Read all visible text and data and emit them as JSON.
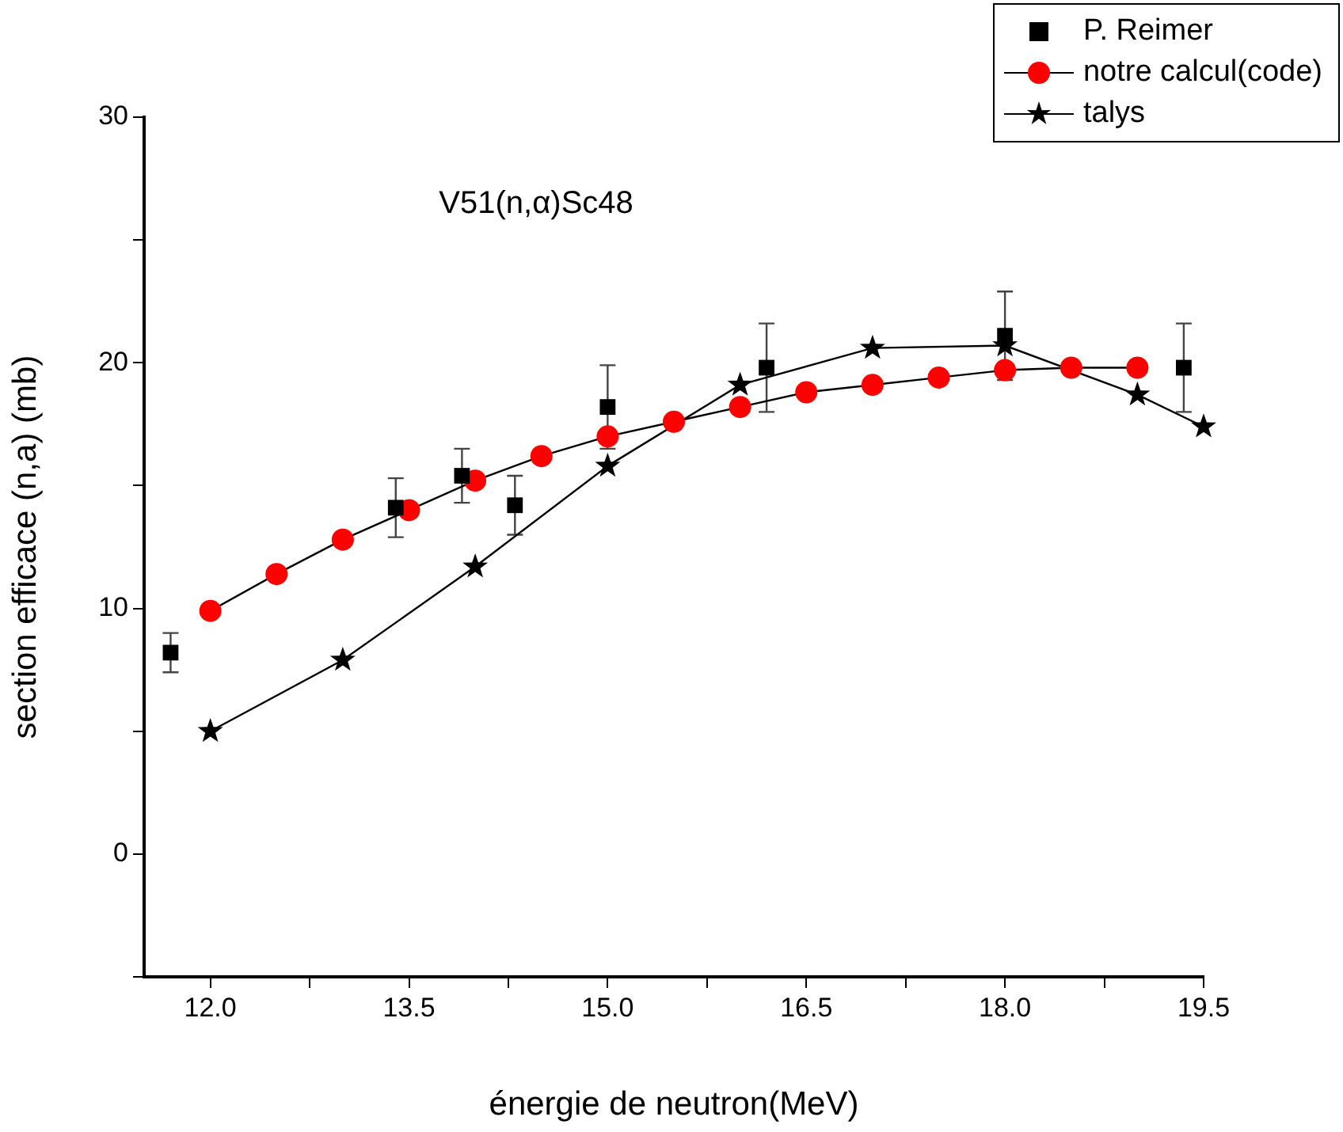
{
  "chart_data": {
    "type": "scatter",
    "title": "V51(n,α)Sc48",
    "xlabel": "énergie de neutron(MeV)",
    "ylabel": "section efficace (n,a) (mb)",
    "xlim": [
      11.5,
      19.5
    ],
    "xticks": [
      {
        "value": 12,
        "label": "12.0"
      },
      {
        "value": 12.75,
        "label": null
      },
      {
        "value": 13.5,
        "label": "13.5"
      },
      {
        "value": 14.25,
        "label": null
      },
      {
        "value": 15,
        "label": "15.0"
      },
      {
        "value": 15.75,
        "label": null
      },
      {
        "value": 16.5,
        "label": "16.5"
      },
      {
        "value": 17.25,
        "label": null
      },
      {
        "value": 18,
        "label": "18.0"
      },
      {
        "value": 18.75,
        "label": null
      },
      {
        "value": 19.5,
        "label": "19.5"
      }
    ],
    "ylim": [
      -5,
      30
    ],
    "yticks": [
      {
        "value": -5,
        "label": null
      },
      0,
      {
        "value": 5,
        "label": null
      },
      10,
      {
        "value": 15,
        "label": null
      },
      20,
      {
        "value": 25,
        "label": null
      },
      30
    ],
    "grid": false,
    "legend": "top right",
    "series": [
      {
        "name": "P. Reimer",
        "type": "scatter",
        "marker": "square",
        "color": "#000000",
        "x": [
          11.7,
          13.4,
          13.9,
          14.3,
          15.0,
          16.2,
          18.0,
          19.35
        ],
        "values": [
          8.2,
          14.1,
          15.4,
          14.2,
          18.2,
          19.8,
          21.1,
          19.8
        ],
        "errors": [
          0.8,
          1.2,
          1.1,
          1.2,
          1.7,
          1.8,
          1.8,
          1.8
        ]
      },
      {
        "name": "notre calcul(code)",
        "type": "line",
        "marker": "circle",
        "color": "#ff0000",
        "x": [
          12.0,
          12.5,
          13.0,
          13.5,
          14.0,
          14.5,
          15.0,
          15.5,
          16.0,
          16.5,
          17.0,
          17.5,
          18.0,
          18.5,
          19.0
        ],
        "values": [
          9.9,
          11.4,
          12.8,
          14.0,
          15.2,
          16.2,
          17.0,
          17.6,
          18.2,
          18.8,
          19.1,
          19.4,
          19.7,
          19.8,
          19.8
        ]
      },
      {
        "name": "talys",
        "type": "line",
        "marker": "star",
        "color": "#000000",
        "x": [
          12.0,
          13.0,
          14.0,
          15.0,
          16.0,
          17.0,
          18.0,
          19.0,
          19.5
        ],
        "values": [
          5.0,
          7.9,
          11.7,
          15.8,
          19.1,
          20.6,
          20.7,
          18.7,
          17.4
        ]
      }
    ]
  }
}
